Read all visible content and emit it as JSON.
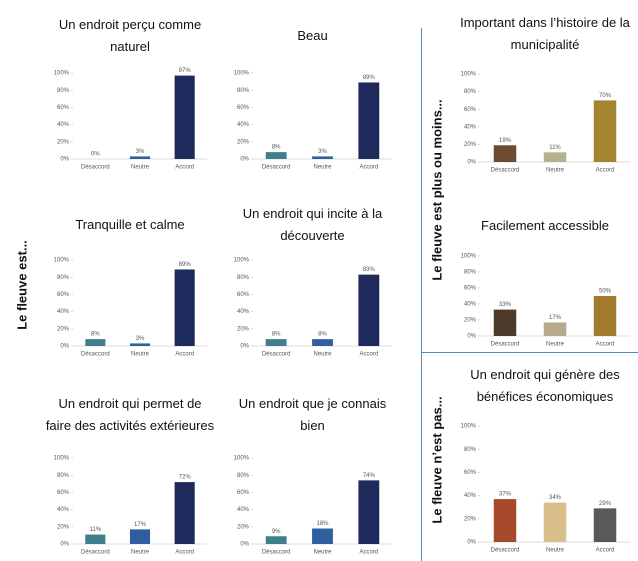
{
  "groups": [
    {
      "label": "Le fleuve est..."
    },
    {
      "label": "Le fleuve est plus ou moins..."
    },
    {
      "label": "Le fleuve n’est pas..."
    }
  ],
  "chart_data": [
    {
      "type": "bar",
      "title": "Un endroit perçu comme naturel",
      "categories": [
        "Désaccord",
        "Neutre",
        "Accord"
      ],
      "values": [
        0,
        3,
        97
      ],
      "value_labels": [
        "0%",
        "3%",
        "97%"
      ],
      "colors": [
        "#3e7f8b",
        "#2f5f9e",
        "#1f2a5c"
      ],
      "ylim": [
        0,
        100
      ],
      "yticks": [
        {
          "value": 0,
          "label": "0%"
        },
        {
          "value": 20,
          "label": "20%"
        },
        {
          "value": 40,
          "label": "40%"
        },
        {
          "value": 60,
          "label": "60%"
        },
        {
          "value": 80,
          "label": "80%"
        },
        {
          "value": 100,
          "label": "100%"
        }
      ]
    },
    {
      "type": "bar",
      "title": "Beau",
      "categories": [
        "Désaccord",
        "Neutre",
        "Accord"
      ],
      "values": [
        8,
        3,
        89
      ],
      "value_labels": [
        "8%",
        "3%",
        "89%"
      ],
      "colors": [
        "#3e7f8b",
        "#2f5f9e",
        "#1f2a5c"
      ],
      "ylim": [
        0,
        100
      ],
      "yticks": [
        {
          "value": 0,
          "label": "0%"
        },
        {
          "value": 20,
          "label": "20%"
        },
        {
          "value": 40,
          "label": "40%"
        },
        {
          "value": 60,
          "label": "60%"
        },
        {
          "value": 80,
          "label": "80%"
        },
        {
          "value": 100,
          "label": "100%"
        }
      ]
    },
    {
      "type": "bar",
      "title": "Tranquille et calme",
      "categories": [
        "Désaccord",
        "Neutre",
        "Accord"
      ],
      "values": [
        8,
        3,
        89
      ],
      "value_labels": [
        "8%",
        "3%",
        "89%"
      ],
      "colors": [
        "#3e7f8b",
        "#2f5f9e",
        "#1f2a5c"
      ],
      "ylim": [
        0,
        100
      ],
      "yticks": [
        {
          "value": 0,
          "label": "0%"
        },
        {
          "value": 20,
          "label": "20%"
        },
        {
          "value": 40,
          "label": "40%"
        },
        {
          "value": 60,
          "label": "60%"
        },
        {
          "value": 80,
          "label": "80%"
        },
        {
          "value": 100,
          "label": "100%"
        }
      ]
    },
    {
      "type": "bar",
      "title": "Un endroit qui incite à la découverte",
      "categories": [
        "Désaccord",
        "Neutre",
        "Accord"
      ],
      "values": [
        8,
        8,
        83
      ],
      "value_labels": [
        "8%",
        "8%",
        "83%"
      ],
      "colors": [
        "#3e7f8b",
        "#2f5f9e",
        "#1f2a5c"
      ],
      "ylim": [
        0,
        100
      ],
      "yticks": [
        {
          "value": 0,
          "label": "0%"
        },
        {
          "value": 20,
          "label": "20%"
        },
        {
          "value": 40,
          "label": "40%"
        },
        {
          "value": 60,
          "label": "60%"
        },
        {
          "value": 80,
          "label": "80%"
        },
        {
          "value": 100,
          "label": "100%"
        }
      ]
    },
    {
      "type": "bar",
      "title": "Un endroit qui permet de faire des activités extérieures",
      "categories": [
        "Désaccord",
        "Neutre",
        "Accord"
      ],
      "values": [
        11,
        17,
        72
      ],
      "value_labels": [
        "11%",
        "17%",
        "72%"
      ],
      "colors": [
        "#3e7f8b",
        "#2f5f9e",
        "#1f2a5c"
      ],
      "ylim": [
        0,
        100
      ],
      "yticks": [
        {
          "value": 0,
          "label": "0%"
        },
        {
          "value": 20,
          "label": "20%"
        },
        {
          "value": 40,
          "label": "40%"
        },
        {
          "value": 60,
          "label": "60%"
        },
        {
          "value": 80,
          "label": "80%"
        },
        {
          "value": 100,
          "label": "100%"
        }
      ]
    },
    {
      "type": "bar",
      "title": "Un endroit que je connais bien",
      "categories": [
        "Désaccord",
        "Neutre",
        "Accord"
      ],
      "values": [
        9,
        18,
        74
      ],
      "value_labels": [
        "9%",
        "18%",
        "74%"
      ],
      "colors": [
        "#3e7f8b",
        "#2f5f9e",
        "#1f2a5c"
      ],
      "ylim": [
        0,
        100
      ],
      "yticks": [
        {
          "value": 0,
          "label": "0%"
        },
        {
          "value": 20,
          "label": "20%"
        },
        {
          "value": 40,
          "label": "40%"
        },
        {
          "value": 60,
          "label": "60%"
        },
        {
          "value": 80,
          "label": "80%"
        },
        {
          "value": 100,
          "label": "100%"
        }
      ]
    },
    {
      "type": "bar",
      "title": "Important dans l’histoire de la municipalité",
      "categories": [
        "Désaccord",
        "Neutre",
        "Accord"
      ],
      "values": [
        19,
        11,
        70
      ],
      "value_labels": [
        "19%",
        "11%",
        "70%"
      ],
      "colors": [
        "#6e4b30",
        "#b3b48c",
        "#a3842f"
      ],
      "ylim": [
        0,
        100
      ],
      "yticks": [
        {
          "value": 0,
          "label": "0%"
        },
        {
          "value": 20,
          "label": "20%"
        },
        {
          "value": 40,
          "label": "40%"
        },
        {
          "value": 60,
          "label": "60%"
        },
        {
          "value": 80,
          "label": "80%"
        },
        {
          "value": 100,
          "label": "100%"
        }
      ]
    },
    {
      "type": "bar",
      "title": "Facilement accessible",
      "categories": [
        "Désaccord",
        "Neutre",
        "Accord"
      ],
      "values": [
        33,
        17,
        50
      ],
      "value_labels": [
        "33%",
        "17%",
        "50%"
      ],
      "colors": [
        "#4b3a29",
        "#b9a98c",
        "#a27b31"
      ],
      "ylim": [
        0,
        100
      ],
      "yticks": [
        {
          "value": 0,
          "label": "0%"
        },
        {
          "value": 20,
          "label": "20%"
        },
        {
          "value": 40,
          "label": "40%"
        },
        {
          "value": 60,
          "label": "60%"
        },
        {
          "value": 80,
          "label": "80%"
        },
        {
          "value": 100,
          "label": "100%"
        }
      ]
    },
    {
      "type": "bar",
      "title": "Un endroit qui génère des bénéfices économiques",
      "categories": [
        "Désaccord",
        "Neutre",
        "Accord"
      ],
      "values": [
        37,
        34,
        29
      ],
      "value_labels": [
        "37%",
        "34%",
        "29%"
      ],
      "colors": [
        "#a64a2b",
        "#d9c08b",
        "#58595b"
      ],
      "ylim": [
        0,
        100
      ],
      "yticks": [
        {
          "value": 0,
          "label": "0%"
        },
        {
          "value": 20,
          "label": "20%"
        },
        {
          "value": 40,
          "label": "40%"
        },
        {
          "value": 60,
          "label": "60%"
        },
        {
          "value": 80,
          "label": "80%"
        },
        {
          "value": 100,
          "label": "100%"
        }
      ]
    }
  ]
}
